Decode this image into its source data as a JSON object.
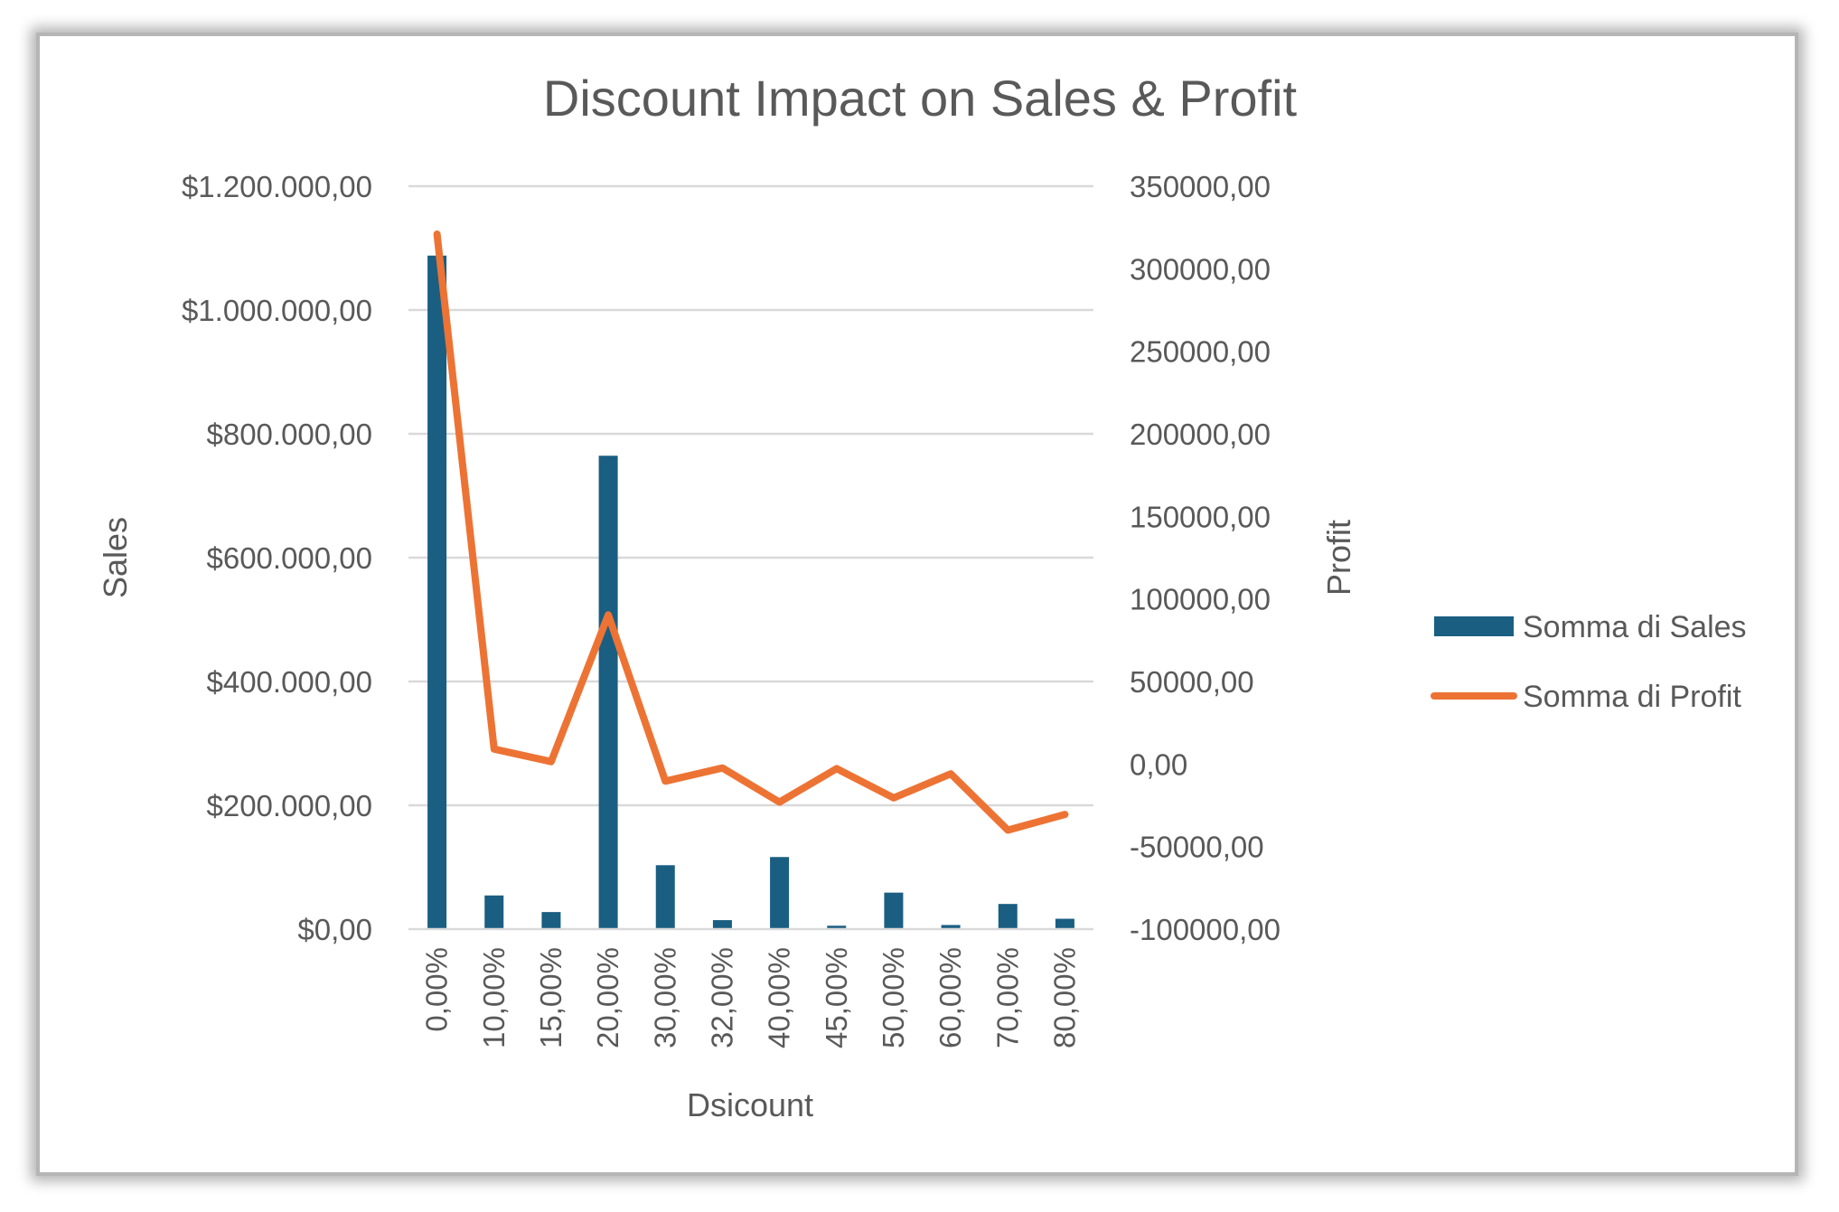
{
  "chart_data": {
    "type": "bar",
    "title": "Discount Impact on Sales & Profit",
    "xlabel": "Dsicount",
    "ylabel": "Sales",
    "y2label": "Profit",
    "categories": [
      "0,00%",
      "10,00%",
      "15,00%",
      "20,00%",
      "30,00%",
      "32,00%",
      "40,00%",
      "45,00%",
      "50,00%",
      "60,00%",
      "70,00%",
      "80,00%"
    ],
    "ylim": [
      0,
      1200000
    ],
    "y2lim": [
      -100000,
      350000
    ],
    "yticks": [
      "$0,00",
      "$200.000,00",
      "$400.000,00",
      "$600.000,00",
      "$800.000,00",
      "$1.000.000,00",
      "$1.200.000,00"
    ],
    "y2ticks": [
      "-100000,00",
      "-50000,00",
      "0,00",
      "50000,00",
      "100000,00",
      "150000,00",
      "200000,00",
      "250000,00",
      "300000,00",
      "350000,00"
    ],
    "grid": true,
    "legend_position": "right",
    "series": [
      {
        "name": "Somma di Sales",
        "type": "bar",
        "axis": "left",
        "color": "#1a5e82",
        "values": [
          1087908,
          54369,
          27558,
          764595,
          103227,
          14493,
          116417,
          5484,
          58918,
          6645,
          40620,
          16729
        ]
      },
      {
        "name": "Somma di Profit",
        "type": "line",
        "axis": "right",
        "color": "#ed7334",
        "values": [
          320988,
          9030,
          1419,
          90338,
          -10369,
          -2391,
          -23058,
          -2755,
          -20506,
          -5945,
          -40076,
          -30539
        ]
      }
    ]
  }
}
